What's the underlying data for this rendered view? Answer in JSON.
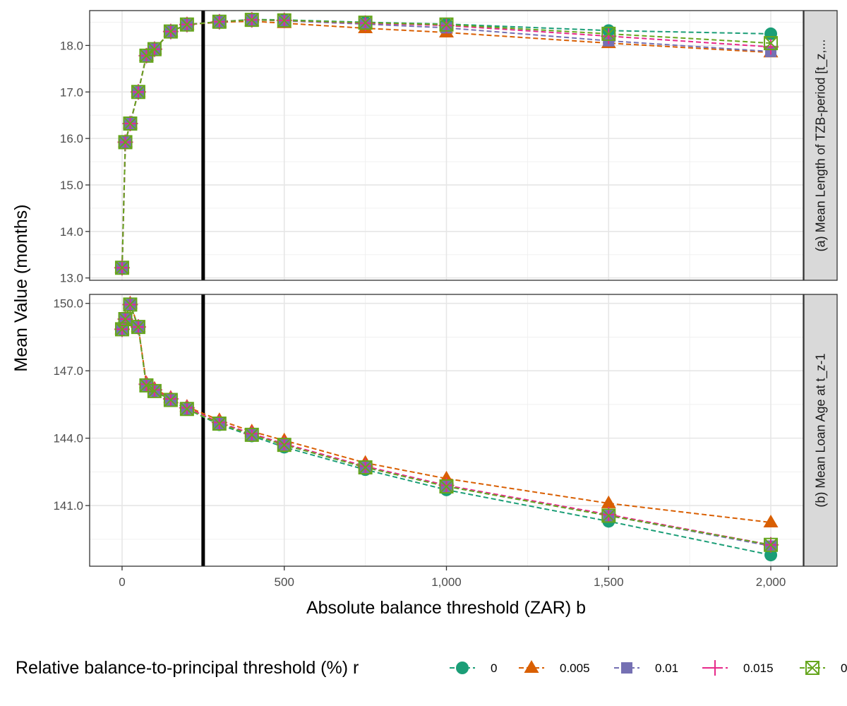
{
  "chart_data": {
    "type": "line",
    "ylabel": "Mean Value (months)",
    "xlabel": "Absolute balance threshold (ZAR) b",
    "x_ticks": [
      "0",
      "500",
      "1,000",
      "1,500",
      "2,000"
    ],
    "x_tick_values": [
      0,
      500,
      1000,
      1500,
      2000
    ],
    "xlim": [
      -100,
      2100
    ],
    "reference_line_x": 250,
    "grid": true,
    "x": [
      0,
      10,
      25,
      50,
      75,
      100,
      150,
      200,
      300,
      400,
      500,
      750,
      1000,
      1500,
      2000
    ],
    "legend": {
      "title": "Relative balance-to-principal threshold (%) r",
      "placement": "bottom",
      "entries": [
        "0",
        "0.005",
        "0.01",
        "0.015",
        "0"
      ]
    },
    "series_style": [
      {
        "color": "#1b9e77",
        "marker": "circle"
      },
      {
        "color": "#d95f02",
        "marker": "triangle"
      },
      {
        "color": "#7570b3",
        "marker": "square"
      },
      {
        "color": "#e7298a",
        "marker": "plus"
      },
      {
        "color": "#66a61e",
        "marker": "boxcross"
      }
    ],
    "panels": [
      {
        "strip": "(a) Mean Length of TZB-period [t_z,...",
        "y_ticks": [
          "13.0",
          "14.0",
          "15.0",
          "16.0",
          "17.0",
          "18.0"
        ],
        "y_tick_values": [
          13,
          14,
          15,
          16,
          17,
          18
        ],
        "ylim": [
          12.95,
          18.75
        ],
        "series": [
          {
            "values": [
              13.22,
              15.92,
              16.32,
              17.0,
              17.78,
              17.92,
              18.3,
              18.45,
              18.51,
              18.56,
              18.55,
              18.5,
              18.46,
              18.32,
              18.25
            ]
          },
          {
            "values": [
              13.22,
              15.92,
              16.32,
              17.0,
              17.78,
              17.92,
              18.3,
              18.45,
              18.5,
              18.52,
              18.48,
              18.37,
              18.28,
              18.05,
              17.85
            ]
          },
          {
            "values": [
              13.22,
              15.92,
              16.32,
              17.0,
              17.78,
              17.92,
              18.3,
              18.45,
              18.51,
              18.55,
              18.53,
              18.46,
              18.38,
              18.1,
              17.87
            ]
          },
          {
            "values": [
              13.22,
              15.92,
              16.32,
              17.0,
              17.78,
              17.92,
              18.3,
              18.45,
              18.51,
              18.55,
              18.54,
              18.48,
              18.43,
              18.2,
              17.97
            ]
          },
          {
            "values": [
              13.22,
              15.92,
              16.32,
              17.0,
              17.78,
              17.92,
              18.3,
              18.45,
              18.51,
              18.55,
              18.54,
              18.49,
              18.45,
              18.25,
              18.05
            ]
          }
        ]
      },
      {
        "strip": "(b) Mean Loan Age at t_z-1",
        "y_ticks": [
          "141.0",
          "144.0",
          "147.0",
          "150.0"
        ],
        "y_tick_values": [
          141,
          144,
          147,
          150
        ],
        "ylim": [
          138.3,
          150.4
        ],
        "series": [
          {
            "values": [
              148.85,
              149.3,
              149.95,
              148.95,
              146.35,
              146.1,
              145.7,
              145.3,
              144.6,
              144.1,
              143.6,
              142.6,
              141.7,
              140.3,
              138.8
            ]
          },
          {
            "values": [
              148.85,
              149.3,
              150.0,
              148.95,
              146.45,
              146.2,
              145.8,
              145.4,
              144.8,
              144.3,
              143.9,
              142.9,
              142.2,
              141.1,
              140.25
            ]
          },
          {
            "values": [
              148.85,
              149.3,
              149.95,
              148.95,
              146.35,
              146.1,
              145.7,
              145.3,
              144.65,
              144.15,
              143.7,
              142.7,
              141.85,
              140.55,
              139.2
            ]
          },
          {
            "values": [
              148.85,
              149.3,
              149.95,
              148.95,
              146.4,
              146.15,
              145.75,
              145.35,
              144.7,
              144.2,
              143.75,
              142.75,
              141.9,
              140.6,
              139.25
            ]
          },
          {
            "values": [
              148.85,
              149.3,
              149.95,
              148.95,
              146.35,
              146.1,
              145.7,
              145.3,
              144.65,
              144.15,
              143.7,
              142.7,
              141.85,
              140.55,
              139.25
            ]
          }
        ]
      }
    ]
  }
}
